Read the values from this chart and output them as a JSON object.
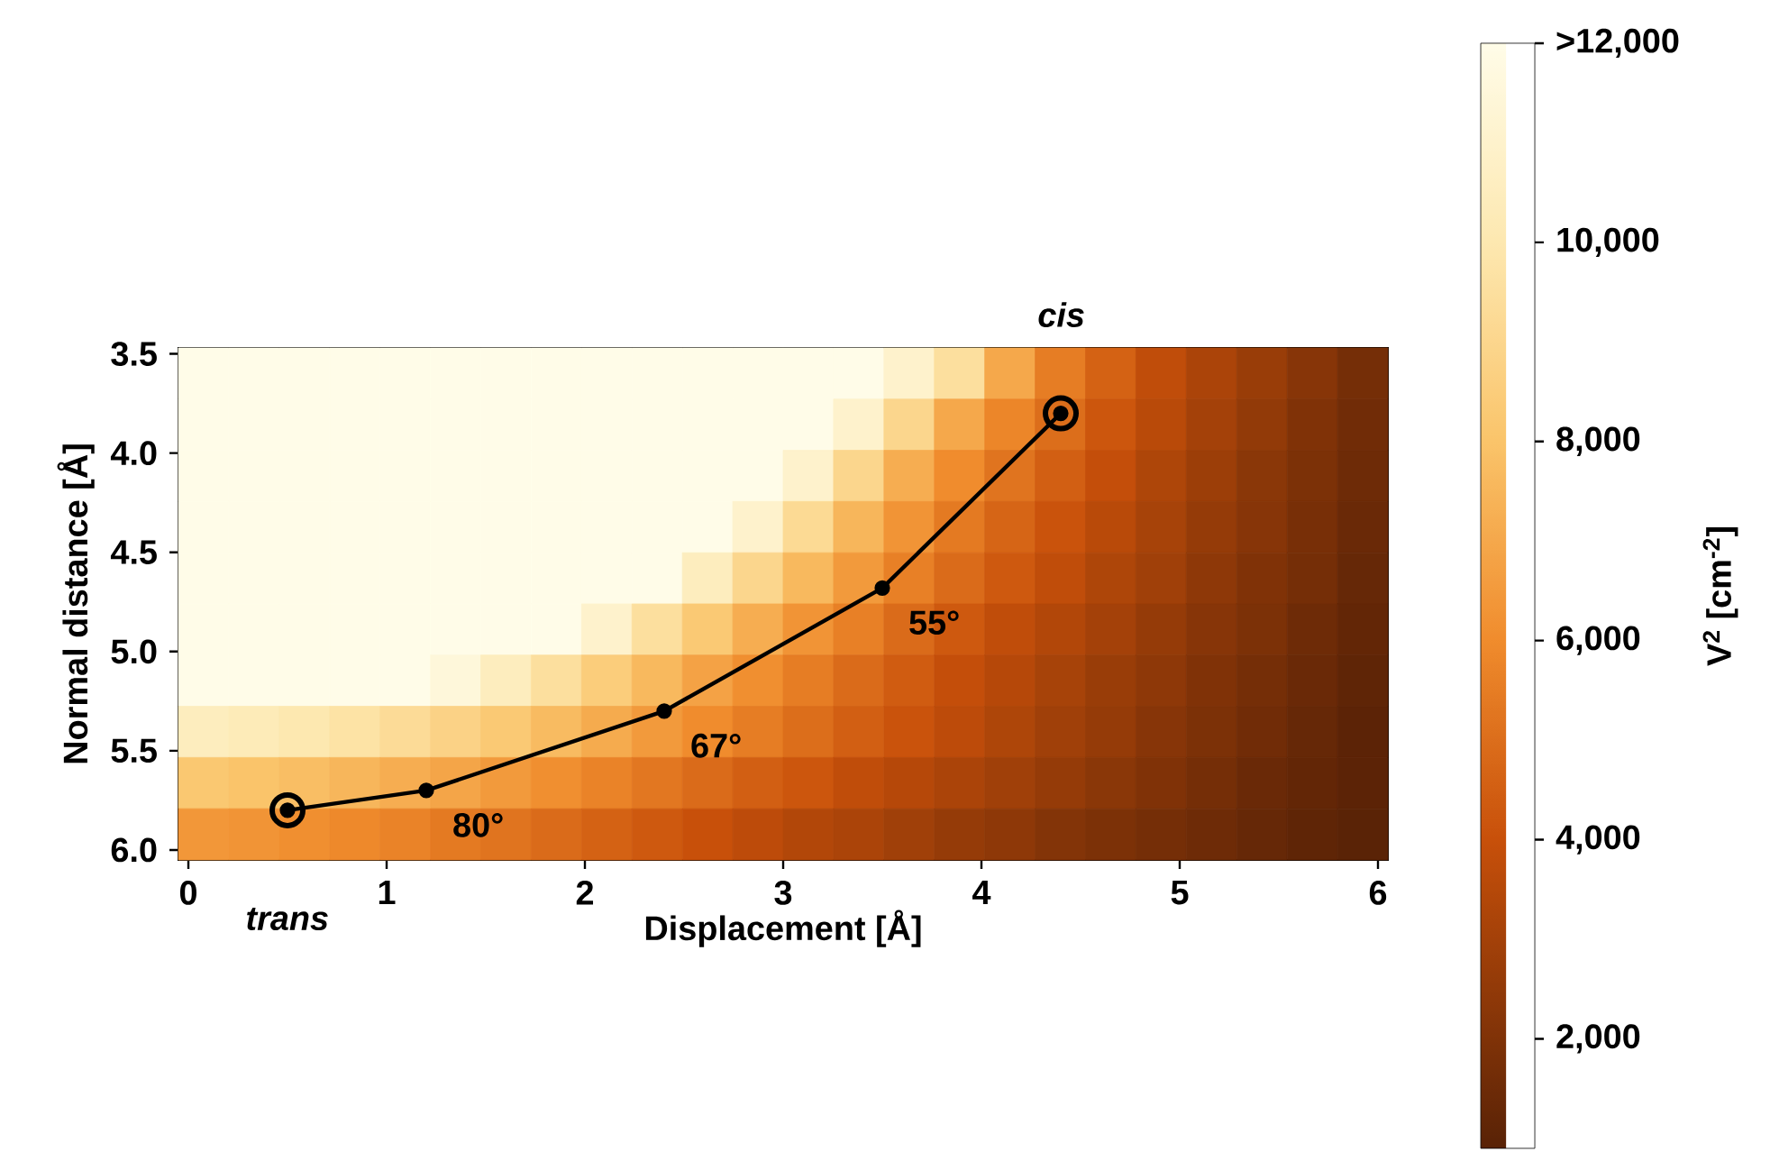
{
  "chart_data": {
    "type": "heatmap",
    "xlabel": "Displacement [Å]",
    "ylabel": "Normal distance [Å]",
    "clabel": "V$^{2}$ [cm$^{-2}$]",
    "xlim": [
      -0.05,
      6.05
    ],
    "ylim": [
      6.05,
      3.47
    ],
    "xticks": [
      0,
      1,
      2,
      3,
      4,
      5,
      6
    ],
    "yticks": [
      3.5,
      {
        "value": 4.0,
        "label": "4.0"
      },
      4.5,
      {
        "value": 5.0,
        "label": "5.0"
      },
      5.5,
      {
        "value": 6.0,
        "label": "6.0"
      }
    ],
    "clim": [
      900,
      12000
    ],
    "cticks": [
      {
        "value": 2000,
        "label": "2,000"
      },
      {
        "value": 4000,
        "label": "4,000"
      },
      {
        "value": 6000,
        "label": "6,000"
      },
      {
        "value": 8000,
        "label": "8,000"
      },
      {
        "value": 10000,
        "label": "10,000"
      },
      {
        "value": 12000,
        "label": ">12,000"
      }
    ],
    "cells": [
      [
        12000,
        12000,
        12000,
        12000,
        12000,
        12000,
        12000,
        12000,
        12000,
        12000,
        12000,
        12000,
        12000,
        12000,
        11000,
        9500,
        7000,
        5500,
        4600,
        3800,
        3200,
        2700,
        2200,
        1700
      ],
      [
        12000,
        12000,
        12000,
        12000,
        12000,
        12000,
        12000,
        12000,
        12000,
        12000,
        12000,
        12000,
        12000,
        11000,
        9000,
        7000,
        5800,
        5000,
        4200,
        3600,
        3000,
        2500,
        2000,
        1600
      ],
      [
        12000,
        12000,
        12000,
        12000,
        12000,
        12000,
        12000,
        12000,
        12000,
        12000,
        12000,
        12000,
        11000,
        9000,
        7200,
        6000,
        5200,
        4500,
        3900,
        3300,
        2800,
        2300,
        1900,
        1500
      ],
      [
        12000,
        12000,
        12000,
        12000,
        12000,
        12000,
        12000,
        12000,
        12000,
        12000,
        12000,
        11000,
        9200,
        7500,
        6300,
        5400,
        4700,
        4100,
        3600,
        3100,
        2600,
        2200,
        1800,
        1400
      ],
      [
        12000,
        12000,
        12000,
        12000,
        12000,
        12000,
        12000,
        12000,
        12000,
        12000,
        10500,
        9000,
        7600,
        6500,
        5600,
        4900,
        4300,
        3800,
        3300,
        2900,
        2400,
        2000,
        1700,
        1300
      ],
      [
        12000,
        12000,
        12000,
        12000,
        12000,
        12000,
        12000,
        12000,
        11000,
        9500,
        8300,
        7200,
        6300,
        5600,
        4900,
        4300,
        3800,
        3400,
        3000,
        2600,
        2200,
        1900,
        1500,
        1200
      ],
      [
        12000,
        12000,
        12000,
        12000,
        12000,
        11500,
        10500,
        9500,
        8500,
        7600,
        6800,
        6100,
        5500,
        4900,
        4400,
        3900,
        3500,
        3100,
        2700,
        2400,
        2000,
        1700,
        1400,
        1100
      ],
      [
        10500,
        10300,
        10000,
        9700,
        9300,
        8800,
        8300,
        7700,
        7100,
        6500,
        6000,
        5500,
        5000,
        4500,
        4100,
        3700,
        3300,
        2900,
        2600,
        2200,
        1900,
        1600,
        1300,
        1000
      ],
      [
        8200,
        8000,
        7800,
        7500,
        7200,
        6900,
        6500,
        6100,
        5700,
        5300,
        4900,
        4500,
        4200,
        3800,
        3500,
        3200,
        2900,
        2600,
        2300,
        2000,
        1700,
        1400,
        1200,
        1000
      ],
      [
        6400,
        6300,
        6100,
        5900,
        5700,
        5400,
        5200,
        4900,
        4600,
        4300,
        4000,
        3700,
        3400,
        3200,
        2900,
        2600,
        2400,
        2100,
        1900,
        1700,
        1500,
        1300,
        1100,
        950
      ]
    ],
    "series": [
      {
        "type": "line",
        "color": "#000000",
        "marker": "circle",
        "line_style": "solid",
        "x": [
          0.5,
          1.2,
          2.4,
          3.5,
          4.4
        ],
        "values": [
          5.8,
          5.7,
          5.3,
          4.68,
          3.8
        ]
      },
      {
        "type": "scatter",
        "color": "#000000",
        "marker": "circle",
        "x": [
          0.5,
          4.4
        ],
        "values": [
          5.8,
          3.8
        ]
      }
    ],
    "annotations": [
      {
        "text": "80°",
        "x": 1.2,
        "y": 5.7
      },
      {
        "text": "67°",
        "x": 2.4,
        "y": 5.3
      },
      {
        "text": "55°",
        "x": 3.5,
        "y": 4.68
      },
      "trans",
      "cis"
    ]
  }
}
